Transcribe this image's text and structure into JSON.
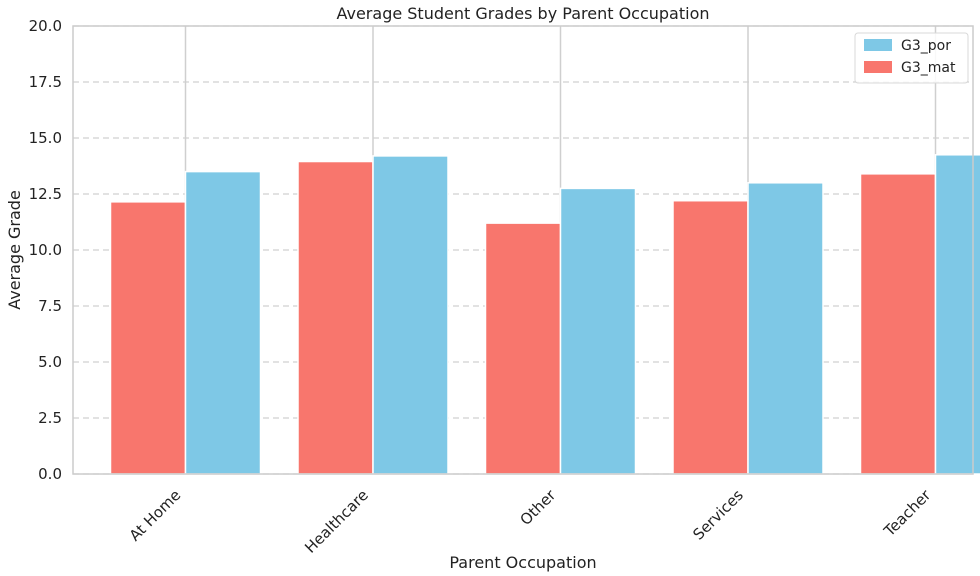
{
  "chart_data": {
    "type": "bar",
    "title": "Average Student Grades by Parent Occupation",
    "xlabel": "Parent Occupation",
    "ylabel": "Average Grade",
    "categories": [
      "At Home",
      "Healthcare",
      "Other",
      "Services",
      "Teacher"
    ],
    "series": [
      {
        "name": "G3_mat",
        "values": [
          12.15,
          13.95,
          11.2,
          12.2,
          13.4
        ],
        "color": "#f8766d"
      },
      {
        "name": "G3_por",
        "values": [
          13.5,
          14.2,
          12.75,
          13.0,
          14.25
        ],
        "color": "#7ec8e6"
      }
    ],
    "ylim": [
      0,
      20
    ],
    "yticks": [
      "0.0",
      "2.5",
      "5.0",
      "7.5",
      "10.0",
      "12.5",
      "15.0",
      "17.5",
      "20.0"
    ],
    "grid": true,
    "legend_position": "top-right",
    "legend_order": [
      "G3_por",
      "G3_mat"
    ]
  }
}
